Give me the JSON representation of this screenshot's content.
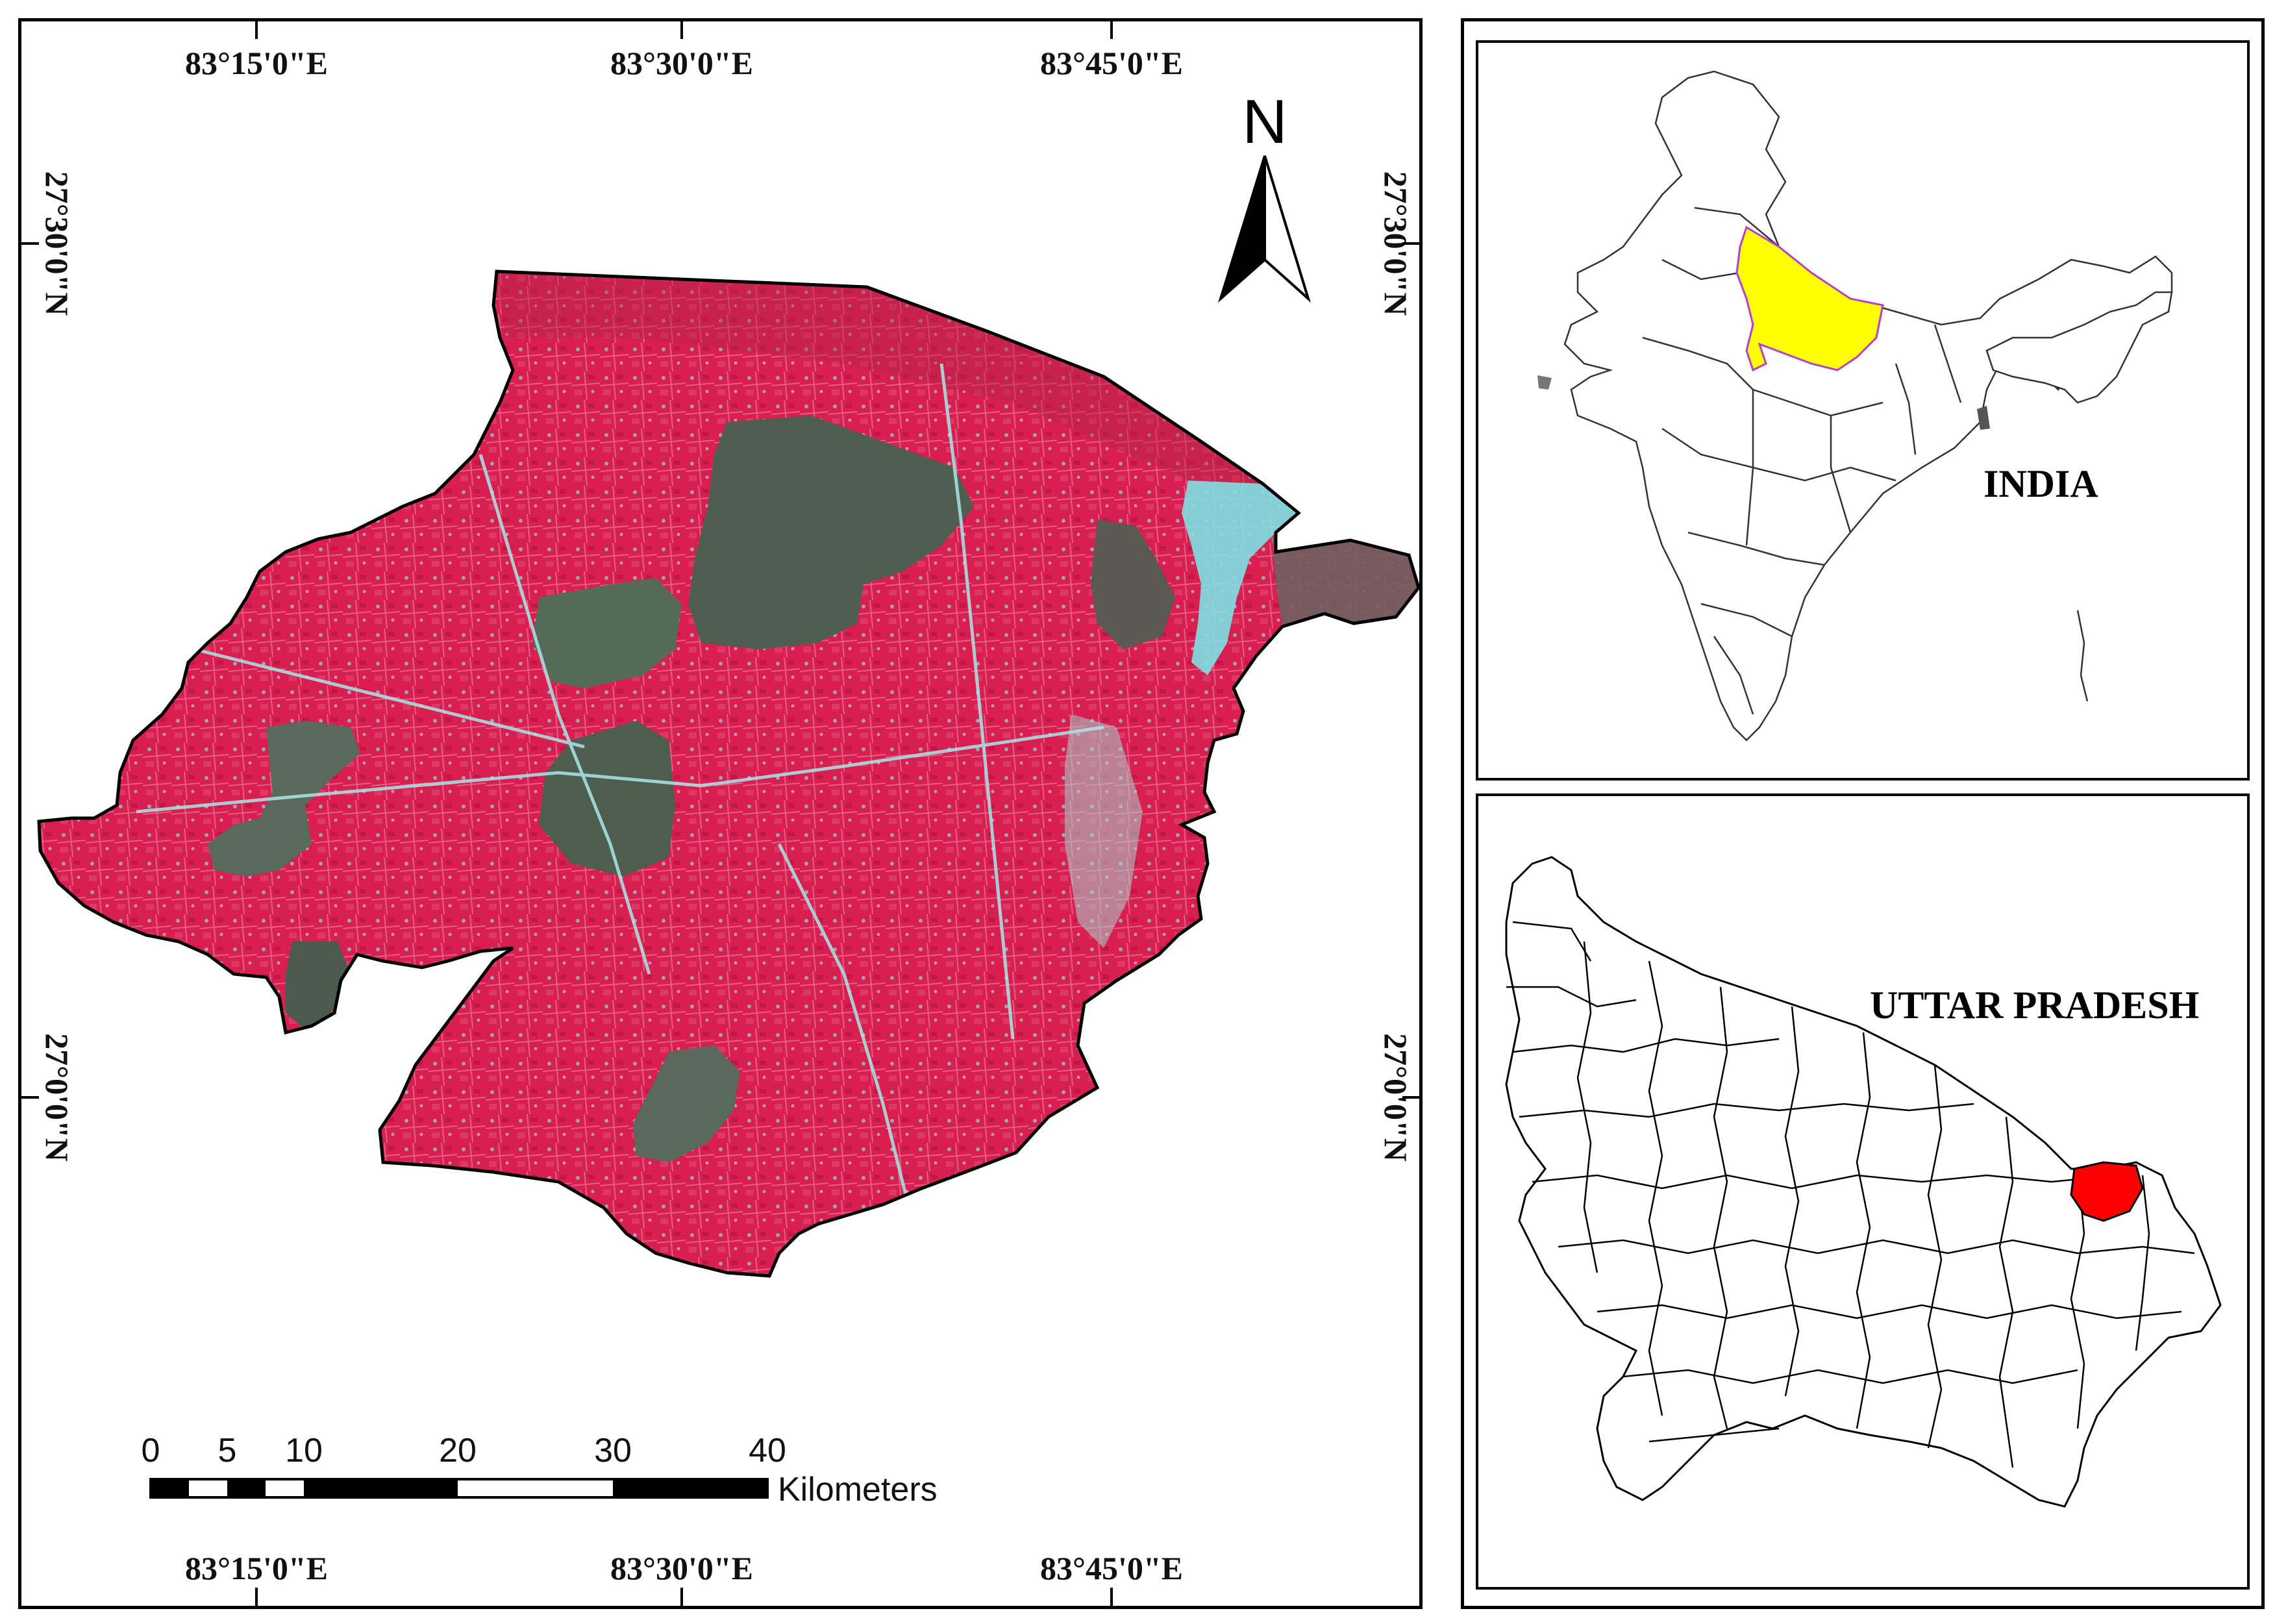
{
  "main_map": {
    "top_labels": [
      "83°15'0\"E",
      "83°30'0\"E",
      "83°45'0\"E"
    ],
    "bottom_labels": [
      "83°15'0\"E",
      "83°30'0\"E",
      "83°45'0\"E"
    ],
    "left_labels": [
      "27°30'0\"N",
      "27°0'0\"N"
    ],
    "right_labels": [
      "27°30'0\"N",
      "27°0'0\"N"
    ],
    "north_label": "N",
    "scale_bar": {
      "ticks": [
        "0",
        "5",
        "10",
        "20",
        "30",
        "40"
      ],
      "unit": "Kilometers"
    },
    "colors": {
      "vegetation": "#d81f4f",
      "forest": "#4d6152",
      "water_river": "#7fe0e4",
      "boundary": "#000000"
    }
  },
  "inset_india": {
    "label": "INDIA",
    "highlight_state_color": "#ffff00",
    "highlight_outline_color": "#b640c8"
  },
  "inset_up": {
    "label": "UTTAR PRADESH",
    "highlight_district_color": "#ff0000"
  }
}
